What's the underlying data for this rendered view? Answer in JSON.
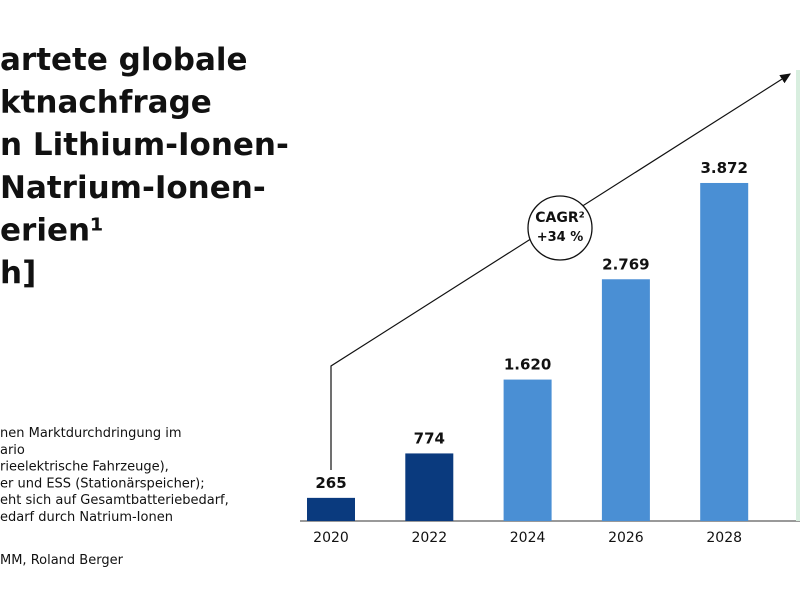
{
  "title_lines": [
    "artete globale",
    "ktnachfrage",
    "n Lithium-Ionen-",
    "Natrium-Ionen-",
    "erien¹",
    "h]"
  ],
  "footnotes": [
    "nen Marktdurchdringung im",
    "ario",
    "rieelektrische Fahrzeuge),",
    "er und ESS (Stationärspeicher);",
    "eht sich auf Gesamtbatteriebedarf,",
    "edarf durch Natrium-Ionen"
  ],
  "source": "MM, Roland Berger",
  "chart_data": {
    "type": "bar",
    "categories": [
      "2020",
      "2022",
      "2024",
      "2026",
      "2028"
    ],
    "values": [
      265,
      774,
      1620,
      2769,
      3872
    ],
    "value_labels": [
      "265",
      "774",
      "1.620",
      "2.769",
      "3.872"
    ],
    "colors": [
      "#0a3a7e",
      "#0a3a7e",
      "#4a8fd4",
      "#4a8fd4",
      "#4a8fd4"
    ],
    "annotation": {
      "label": "CAGR²",
      "value": "+34 %"
    }
  }
}
